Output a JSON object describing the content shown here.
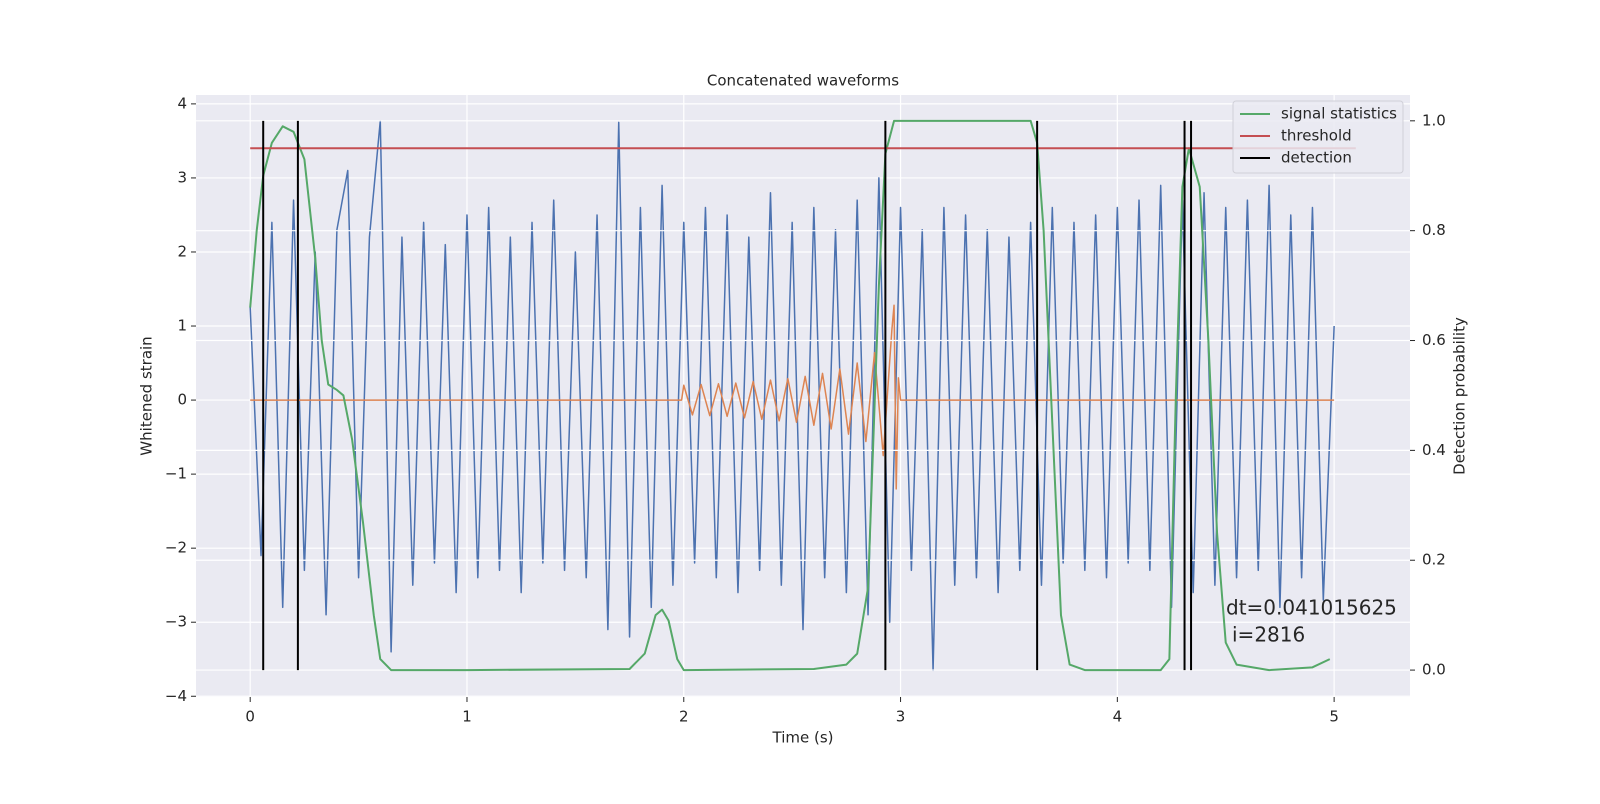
{
  "chart_data": {
    "type": "line",
    "title": "Concatenated waveforms",
    "xlabel": "Time (s)",
    "ylabel": "Whitened strain",
    "y2label": "Detection probability",
    "xlim": [
      -0.25,
      5.35
    ],
    "ylim": [
      -4.01,
      4.12
    ],
    "y2lim": [
      -0.049,
      1.047
    ],
    "xticks": [
      0,
      1,
      2,
      3,
      4,
      5
    ],
    "yticks": [
      {
        "value": -4,
        "label": "−4"
      },
      {
        "value": -3,
        "label": "−3"
      },
      {
        "value": -2,
        "label": "−2"
      },
      {
        "value": -1,
        "label": "−1"
      },
      0,
      1,
      2,
      3,
      4
    ],
    "y2ticks": [
      {
        "value": 0,
        "label": "0.0"
      },
      0.2,
      0.4,
      0.6,
      0.8,
      {
        "value": 1,
        "label": "1.0"
      }
    ],
    "grid": true,
    "y2grid": true,
    "legend": "upper right",
    "series": [
      {
        "color": "#4c72b0",
        "x": [
          0,
          0.05,
          0.1,
          0.15,
          0.2,
          0.25,
          0.3,
          0.35,
          0.4,
          0.45,
          0.5,
          0.55,
          0.6,
          0.65,
          0.7,
          0.75,
          0.8,
          0.85,
          0.9,
          0.95,
          1.0,
          1.05,
          1.1,
          1.15,
          1.2,
          1.25,
          1.3,
          1.35,
          1.4,
          1.45,
          1.5,
          1.55,
          1.6,
          1.65,
          1.7,
          1.75,
          1.8,
          1.85,
          1.9,
          1.95,
          2.0,
          2.05,
          2.1,
          2.15,
          2.2,
          2.25,
          2.3,
          2.35,
          2.4,
          2.45,
          2.5,
          2.55,
          2.6,
          2.65,
          2.7,
          2.75,
          2.8,
          2.85,
          2.9,
          2.95,
          3.0,
          3.05,
          3.1,
          3.15,
          3.2,
          3.25,
          3.3,
          3.35,
          3.4,
          3.45,
          3.5,
          3.55,
          3.6,
          3.65,
          3.7,
          3.75,
          3.8,
          3.85,
          3.9,
          3.95,
          4.0,
          4.05,
          4.1,
          4.15,
          4.2,
          4.25,
          4.3,
          4.35,
          4.4,
          4.45,
          4.5,
          4.55,
          4.6,
          4.65,
          4.7,
          4.75,
          4.8,
          4.85,
          4.9,
          4.95,
          5.0
        ],
        "values": [
          1.25,
          -2.1,
          2.4,
          -2.8,
          2.7,
          -2.3,
          2.0,
          -2.9,
          2.3,
          3.1,
          -2.4,
          2.2,
          3.77,
          -3.4,
          2.2,
          -2.5,
          2.4,
          -2.2,
          2.1,
          -2.6,
          2.5,
          -2.4,
          2.6,
          -2.3,
          2.2,
          -2.6,
          2.4,
          -2.2,
          2.7,
          -2.3,
          2.0,
          -2.4,
          2.5,
          -3.1,
          3.75,
          -3.2,
          2.6,
          -2.8,
          2.9,
          -2.5,
          2.4,
          -2.2,
          2.6,
          -2.4,
          2.5,
          -2.6,
          2.2,
          -2.3,
          2.8,
          -2.5,
          2.4,
          -3.1,
          2.6,
          -2.4,
          2.3,
          -2.6,
          2.7,
          -2.9,
          3.0,
          -3.0,
          2.6,
          -2.3,
          2.3,
          -3.65,
          2.6,
          -2.5,
          2.5,
          -2.4,
          2.3,
          -2.6,
          2.2,
          -2.3,
          2.4,
          -2.5,
          2.6,
          -2.2,
          2.4,
          -2.3,
          2.5,
          -2.4,
          2.6,
          -2.2,
          2.7,
          -2.3,
          2.9,
          -2.8,
          2.7,
          -2.6,
          2.8,
          -2.5,
          2.6,
          -2.4,
          2.7,
          -2.3,
          2.9,
          -2.8,
          2.5,
          -2.4,
          2.6,
          -2.7,
          1.0
        ]
      },
      {
        "color": "#dd8452",
        "x": [
          0,
          1.99,
          2.0,
          2.04,
          2.08,
          2.12,
          2.16,
          2.2,
          2.24,
          2.28,
          2.32,
          2.36,
          2.4,
          2.44,
          2.48,
          2.52,
          2.56,
          2.6,
          2.64,
          2.68,
          2.72,
          2.76,
          2.8,
          2.84,
          2.88,
          2.92,
          2.96,
          2.97,
          2.98,
          2.99,
          3.0,
          5.0
        ],
        "values": [
          0,
          0,
          0.2,
          -0.2,
          0.21,
          -0.21,
          0.22,
          -0.22,
          0.23,
          -0.24,
          0.25,
          -0.26,
          0.27,
          -0.28,
          0.29,
          -0.3,
          0.32,
          -0.34,
          0.36,
          -0.39,
          0.42,
          -0.46,
          0.5,
          -0.56,
          0.64,
          -0.75,
          0.95,
          1.28,
          -1.2,
          0.3,
          0,
          0
        ]
      },
      {
        "name": "signal statistics",
        "color": "#55a868",
        "axis": "y2",
        "x": [
          0,
          0.03,
          0.06,
          0.1,
          0.15,
          0.2,
          0.25,
          0.3,
          0.33,
          0.36,
          0.4,
          0.43,
          0.47,
          0.52,
          0.57,
          0.6,
          0.65,
          1.0,
          1.75,
          1.82,
          1.87,
          1.9,
          1.93,
          1.97,
          2.0,
          2.6,
          2.75,
          2.8,
          2.85,
          2.9,
          2.93,
          2.97,
          3.6,
          3.63,
          3.66,
          3.7,
          3.74,
          3.78,
          3.85,
          4.2,
          4.24,
          4.27,
          4.3,
          4.33,
          4.38,
          4.42,
          4.46,
          4.5,
          4.55,
          4.7,
          4.9,
          4.98
        ],
        "values": [
          0.66,
          0.8,
          0.9,
          0.96,
          0.99,
          0.98,
          0.93,
          0.75,
          0.6,
          0.52,
          0.51,
          0.5,
          0.42,
          0.27,
          0.1,
          0.02,
          0,
          0,
          0.002,
          0.03,
          0.1,
          0.11,
          0.09,
          0.02,
          0,
          0.002,
          0.01,
          0.03,
          0.15,
          0.7,
          0.94,
          1.0,
          1.0,
          0.96,
          0.8,
          0.45,
          0.1,
          0.01,
          0,
          0,
          0.02,
          0.5,
          0.88,
          0.95,
          0.88,
          0.6,
          0.25,
          0.05,
          0.01,
          0,
          0.005,
          0.02
        ]
      },
      {
        "name": "threshold",
        "color": "#c44e52",
        "axis": "y2",
        "x": [
          0,
          5.1
        ],
        "values": [
          0.95,
          0.95
        ]
      }
    ],
    "detection": {
      "name": "detection",
      "color": "#000000",
      "x": [
        0.06,
        0.22,
        2.93,
        3.63,
        4.31,
        4.34
      ],
      "ymin": 0,
      "ymax": 1
    },
    "annotation": [
      "dt=0.041015625",
      "i=2816"
    ]
  }
}
